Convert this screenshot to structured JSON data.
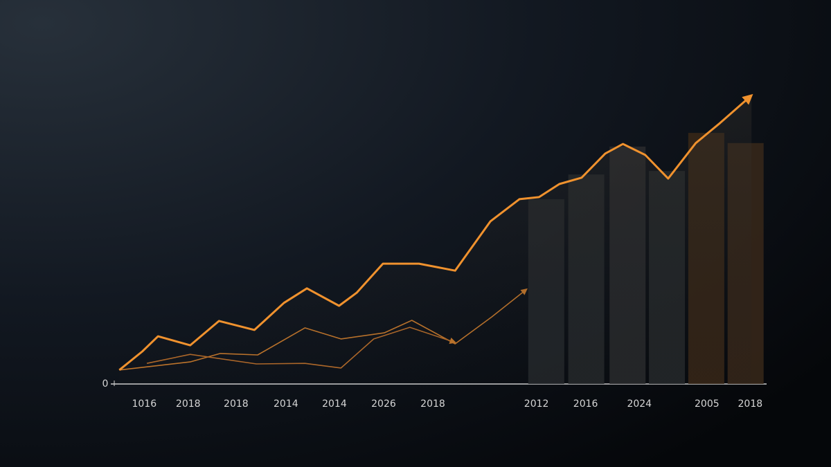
{
  "chart_data": {
    "type": "combo",
    "xlim": [
      0,
      100
    ],
    "ylim": [
      0,
      100
    ],
    "yticks": [
      0
    ],
    "xticks": [
      {
        "value": 5.1,
        "label": "1016"
      },
      {
        "value": 11.8,
        "label": "2018"
      },
      {
        "value": 19.1,
        "label": "2018"
      },
      {
        "value": 26.7,
        "label": "2014"
      },
      {
        "value": 34.1,
        "label": "2014"
      },
      {
        "value": 41.6,
        "label": "2026"
      },
      {
        "value": 49.1,
        "label": "2018"
      },
      {
        "value": 64.9,
        "label": "2012"
      },
      {
        "value": 72.4,
        "label": "2016"
      },
      {
        "value": 80.6,
        "label": "2024"
      },
      {
        "value": 90.9,
        "label": "2005"
      },
      {
        "value": 97.5,
        "label": "2018"
      }
    ],
    "series": [
      {
        "type": "bar",
        "colors": [
          "#24282b",
          "#26292c",
          "#2a2c2e",
          "#26292c",
          "#3a2818",
          "#38281a"
        ],
        "x": [
          66.4,
          72.5,
          78.8,
          84.8,
          90.8,
          96.8
        ],
        "values": [
          63.6,
          72.1,
          81.7,
          73.3,
          86.4,
          82.9
        ]
      },
      {
        "type": "line",
        "color": "#c97a2c",
        "x": [
          1.3,
          12.1,
          16.7,
          22.4,
          29.6,
          35.1,
          41.7,
          45.9,
          52.5,
          58.1,
          63.4
        ],
        "values": [
          4.8,
          7.6,
          10.5,
          10.0,
          19.3,
          15.5,
          17.6,
          21.9,
          13.8,
          23.1,
          32.6
        ]
      },
      {
        "type": "line",
        "color": "#b86d2a",
        "x": [
          5.5,
          12.1,
          22.2,
          29.6,
          35.1,
          40.1,
          45.6,
          52.5
        ],
        "values": [
          7.1,
          10.2,
          6.9,
          7.1,
          5.5,
          15.5,
          19.5,
          14.3
        ]
      },
      {
        "type": "line",
        "color": "#f0922e",
        "x": [
          1.3,
          4.8,
          7.2,
          12.1,
          16.5,
          21.9,
          26.4,
          29.9,
          34.8,
          37.5,
          41.5,
          47.0,
          52.5,
          57.9,
          62.3,
          65.3,
          68.4,
          71.8,
          75.4,
          78.1,
          81.5,
          85.0,
          89.2,
          92.9,
          97.7
        ],
        "values": [
          4.8,
          11.2,
          16.4,
          13.3,
          21.7,
          18.6,
          27.9,
          32.9,
          26.9,
          31.4,
          41.4,
          41.4,
          39.0,
          56.0,
          63.6,
          64.3,
          68.8,
          71.0,
          79.3,
          82.6,
          78.8,
          70.7,
          82.9,
          89.8,
          99.3
        ]
      }
    ]
  }
}
